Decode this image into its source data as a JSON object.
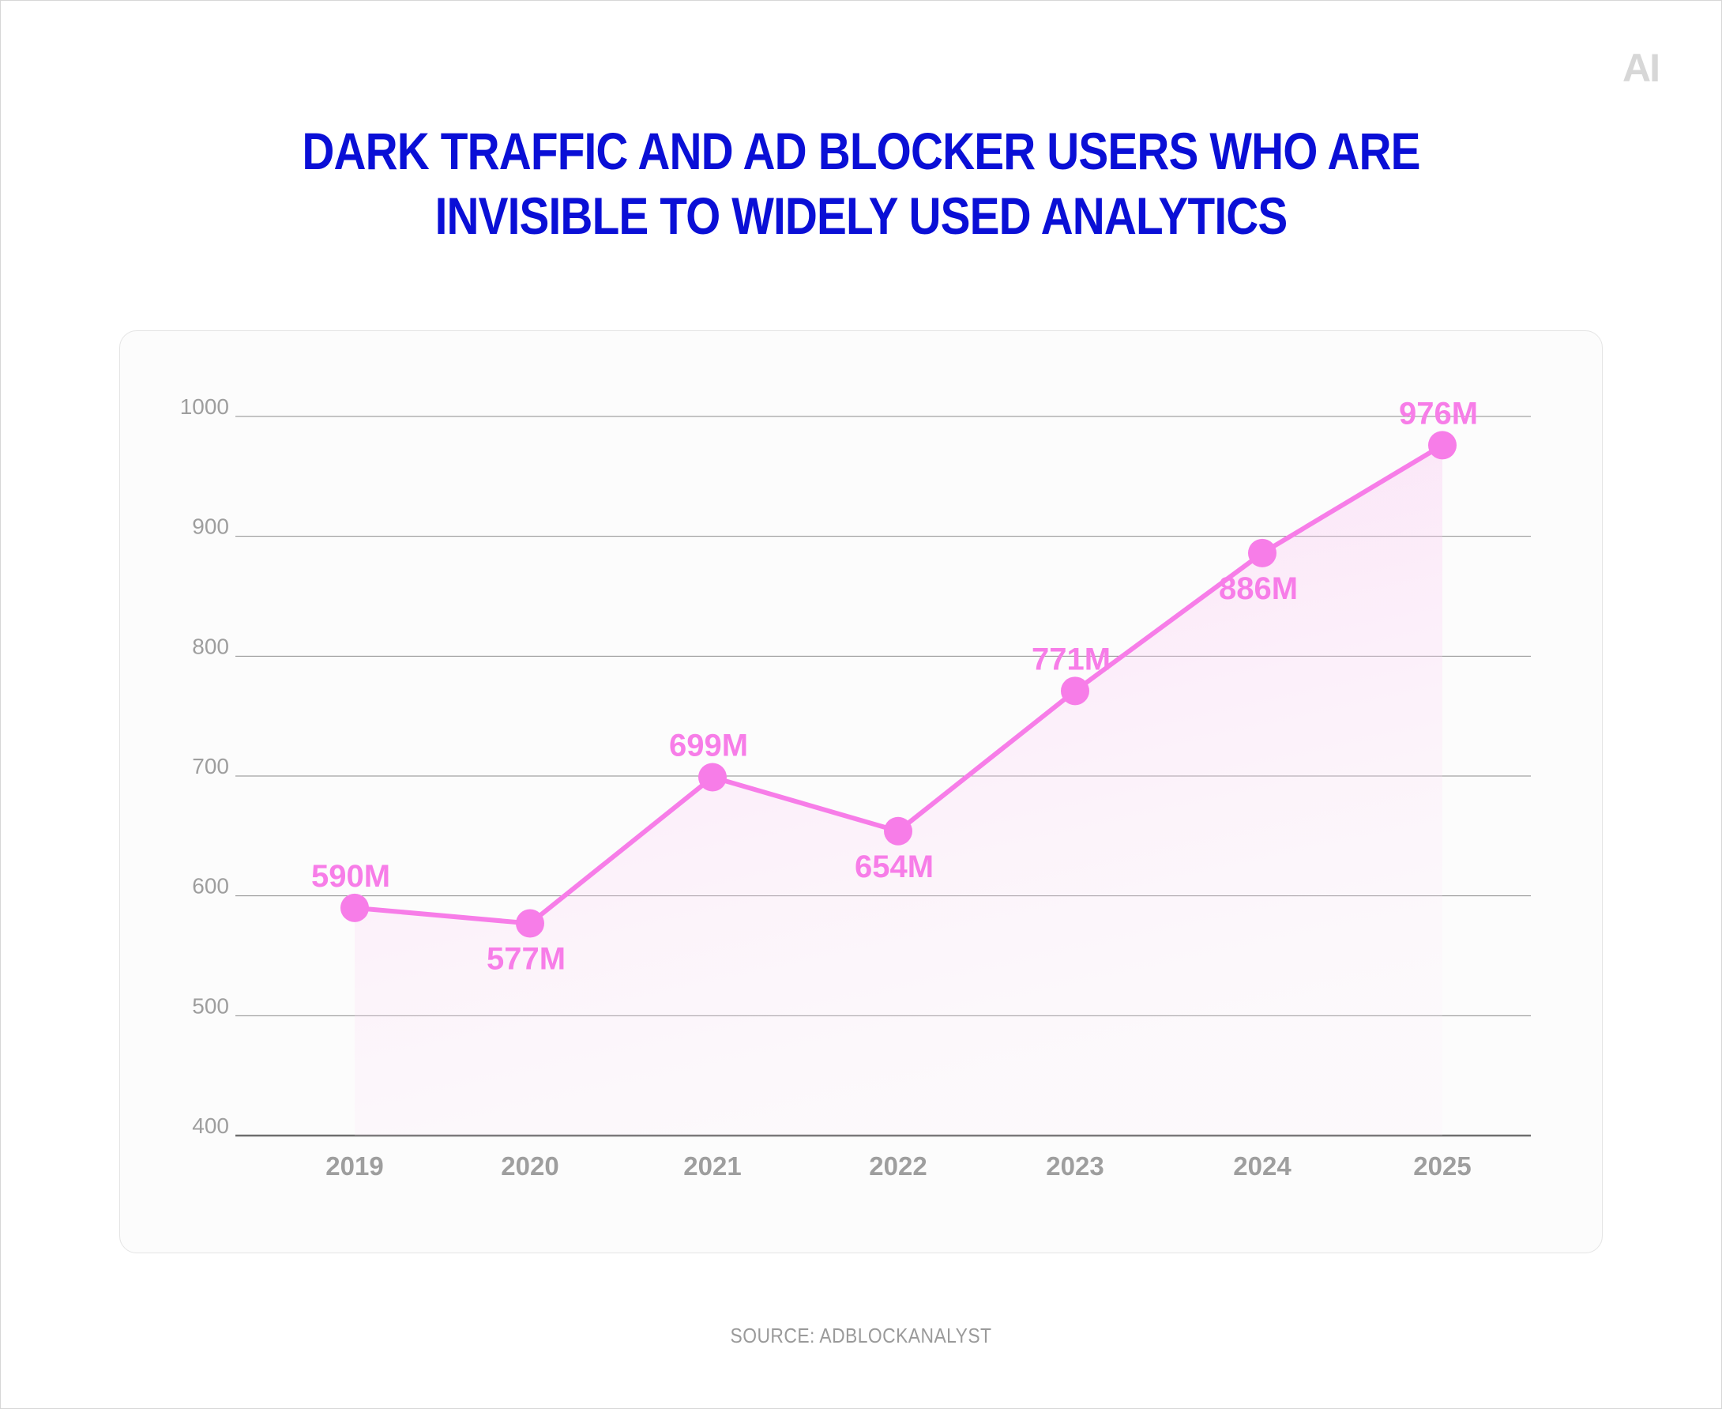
{
  "page": {
    "logo_text": "AI",
    "source": "SOURCE: ADBLOCKANALYST"
  },
  "colors": {
    "title": "#0a0fd6",
    "line": "#f77de8",
    "axis_text": "#9e9e9e",
    "grid": "#8c8c8c"
  },
  "chart_data": {
    "type": "line",
    "title_lines": [
      "DARK TRAFFIC AND AD BLOCKER USERS WHO ARE",
      "INVISIBLE TO WIDELY USED ANALYTICS"
    ],
    "categories": [
      "2019",
      "2020",
      "2021",
      "2022",
      "2023",
      "2024",
      "2025"
    ],
    "series": [
      {
        "values": [
          590,
          577,
          699,
          654,
          771,
          886,
          976
        ],
        "labels": [
          "590M",
          "577M",
          "699M",
          "654M",
          "771M",
          "886M",
          "976M"
        ]
      }
    ],
    "yticks": [
      "1000",
      "900",
      "800",
      "700",
      "600",
      "500",
      "400"
    ],
    "ylim": [
      400,
      1000
    ],
    "xlabel": "",
    "ylabel": "",
    "grid": true,
    "area_fill": true
  }
}
